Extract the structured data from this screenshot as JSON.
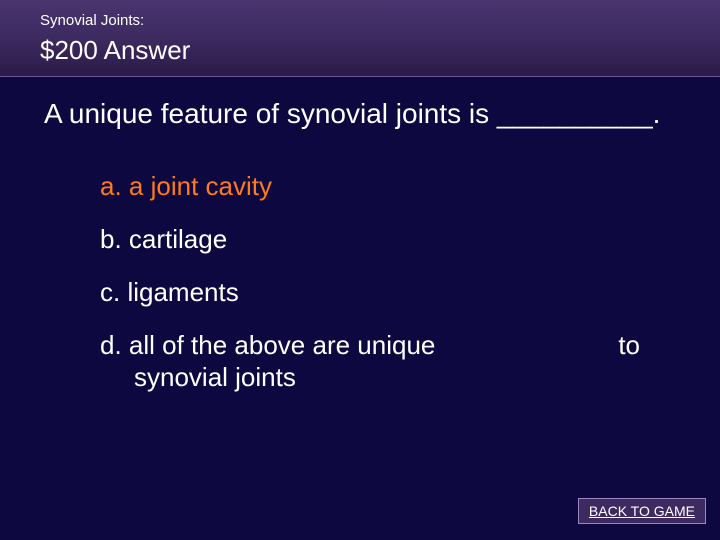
{
  "header": {
    "category": "Synovial Joints:",
    "value_answer": "$200 Answer"
  },
  "question": {
    "text": "A unique feature of synovial joints is __________."
  },
  "options": {
    "a": {
      "label": "a. a joint cavity",
      "correct": true
    },
    "b": {
      "label": "b. cartilage",
      "correct": false
    },
    "c": {
      "label": "c. ligaments",
      "correct": false
    },
    "d": {
      "line1_main": "d. all of the above are unique",
      "line1_right": "to",
      "line2": "synovial joints",
      "correct": false
    }
  },
  "button": {
    "back_label": "BACK TO GAME"
  },
  "colors": {
    "background": "#0d0840",
    "header_gradient_top": "#4a3570",
    "header_gradient_bottom": "#2a1a48",
    "text": "#ffffff",
    "correct": "#ff7a1a",
    "button_bg": "#3d2a60",
    "button_border": "#9a88c0"
  }
}
